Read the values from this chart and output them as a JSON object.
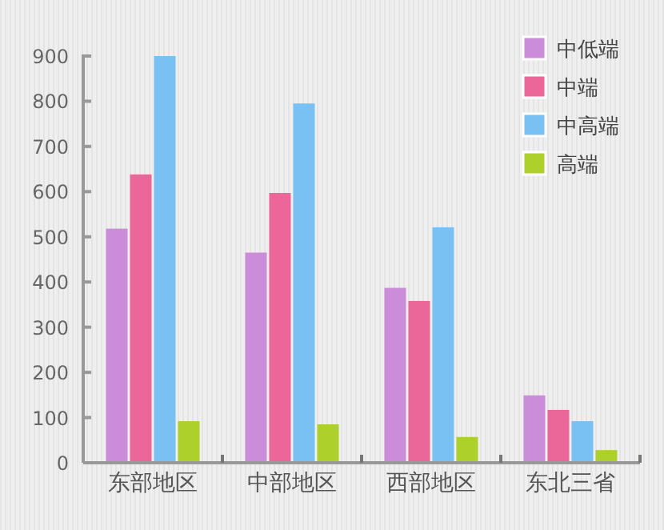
{
  "chart_data": {
    "type": "bar",
    "categories": [
      "东部地区",
      "中部地区",
      "西部地区",
      "东北三省"
    ],
    "series": [
      {
        "name": "中低端",
        "color": "#cb8cd9",
        "values": [
          518,
          465,
          387,
          149
        ]
      },
      {
        "name": "中端",
        "color": "#ec6799",
        "values": [
          638,
          597,
          358,
          117
        ]
      },
      {
        "name": "中高端",
        "color": "#79c1f3",
        "values": [
          900,
          795,
          521,
          92
        ]
      },
      {
        "name": "高端",
        "color": "#add12a",
        "values": [
          92,
          85,
          57,
          28
        ]
      }
    ],
    "ylim": [
      0,
      900
    ],
    "yticks": [
      0,
      100,
      200,
      300,
      400,
      500,
      600,
      700,
      800,
      900
    ],
    "grid": false,
    "legend": "top right"
  }
}
